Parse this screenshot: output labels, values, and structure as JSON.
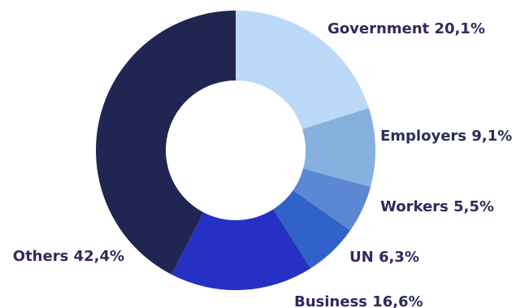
{
  "chart_data": {
    "type": "pie",
    "donut": true,
    "decimal_separator": ",",
    "unit": "%",
    "label_color": "#2a2d5c",
    "slices": [
      {
        "name": "Government",
        "value": 20.1,
        "color": "#bcd9f7"
      },
      {
        "name": "Employers",
        "value": 9.1,
        "color": "#86b1de"
      },
      {
        "name": "Workers",
        "value": 5.5,
        "color": "#5c88d3"
      },
      {
        "name": "UN",
        "value": 6.3,
        "color": "#3062c9"
      },
      {
        "name": "Business",
        "value": 16.6,
        "color": "#2630c4"
      },
      {
        "name": "Others",
        "value": 42.4,
        "color": "#212551"
      }
    ]
  }
}
